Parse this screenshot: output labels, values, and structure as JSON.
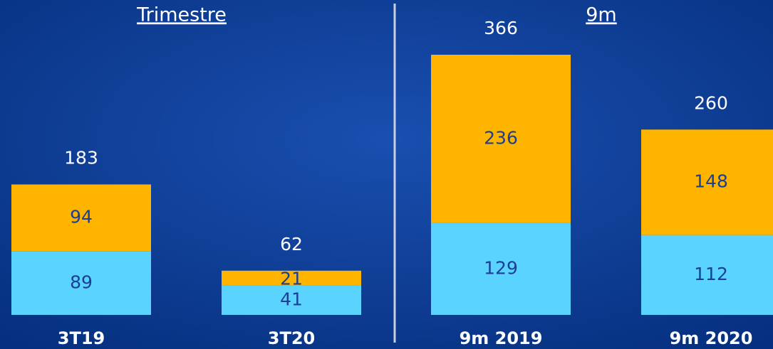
{
  "chart_data": [
    {
      "type": "bar",
      "stacked": true,
      "title": "Trimestre",
      "categories": [
        "3T19",
        "3T20"
      ],
      "series": [
        {
          "color": "#5ad4ff",
          "values": [
            89,
            41
          ]
        },
        {
          "color": "#ffb400",
          "values": [
            94,
            21
          ]
        }
      ],
      "totals": [
        183,
        62
      ]
    },
    {
      "type": "bar",
      "stacked": true,
      "title": "9m",
      "categories": [
        "9m 2019",
        "9m 2020"
      ],
      "series": [
        {
          "color": "#5ad4ff",
          "values": [
            129,
            112
          ]
        },
        {
          "color": "#ffb400",
          "values": [
            236,
            148
          ]
        }
      ],
      "totals": [
        366,
        260
      ]
    }
  ]
}
